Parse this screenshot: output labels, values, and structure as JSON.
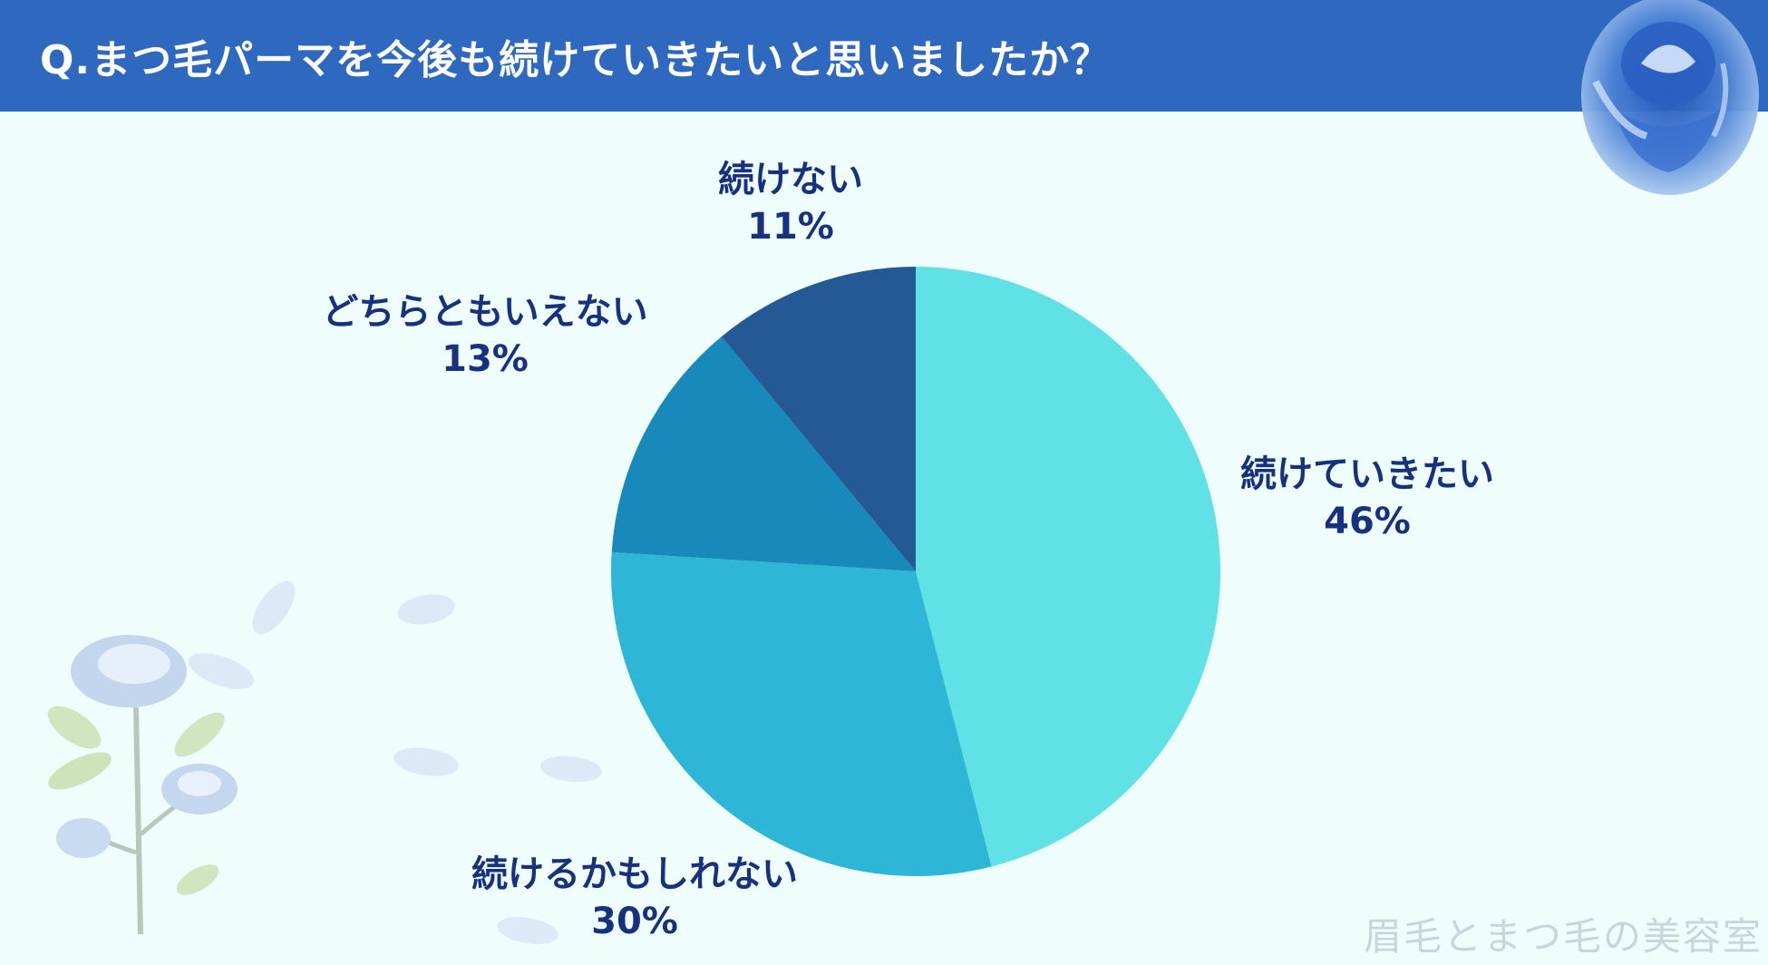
{
  "header": {
    "title": "Q.まつ毛パーマを今後も続けていきたいと思いましたか？",
    "background_color": "#2f68bf"
  },
  "watermark": "眉毛とまつ毛の美容室",
  "chart_data": {
    "type": "pie",
    "title": "Q.まつ毛パーマを今後も続けていきたいと思いましたか？",
    "categories": [
      "続けていきたい",
      "続けるかもしれない",
      "どちらともいえない",
      "続けない"
    ],
    "values": [
      46,
      30,
      13,
      11
    ],
    "labels": [
      "46%",
      "30%",
      "13%",
      "11%"
    ],
    "colors": [
      "#5fe1e5",
      "#2db6d5",
      "#1889bb",
      "#255996"
    ],
    "legend": "none",
    "start": "top",
    "direction": "clockwise"
  },
  "decorations": {
    "icons": [
      "blue-rose-icon",
      "blue-rose-branch-icon",
      "petal-icon"
    ]
  }
}
